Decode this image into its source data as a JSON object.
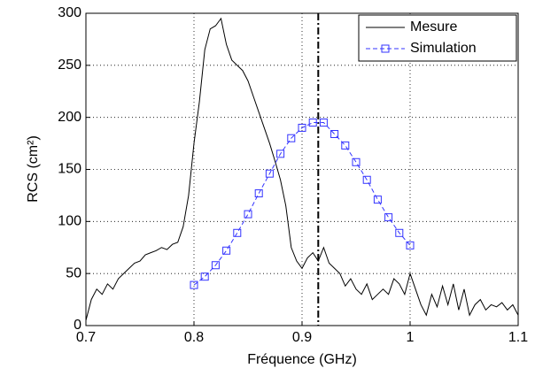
{
  "chart_data": {
    "type": "line",
    "xlabel": "Fréquence (GHz)",
    "ylabel": "RCS (cm²)",
    "xlim": [
      0.7,
      1.1
    ],
    "xticks": [
      0.7,
      0.8,
      0.9,
      1,
      1.1
    ],
    "ylim": [
      0,
      300
    ],
    "yticks": [
      0,
      50,
      100,
      150,
      200,
      250,
      300
    ],
    "grid": true,
    "legend": "upper right",
    "vline": 0.915,
    "series": [
      {
        "name": "Mesure",
        "color": "#000000",
        "marker": "none",
        "x": [
          0.7,
          0.705,
          0.71,
          0.715,
          0.72,
          0.725,
          0.73,
          0.735,
          0.74,
          0.745,
          0.75,
          0.755,
          0.76,
          0.765,
          0.77,
          0.775,
          0.78,
          0.785,
          0.79,
          0.795,
          0.8,
          0.805,
          0.81,
          0.815,
          0.82,
          0.825,
          0.83,
          0.835,
          0.84,
          0.845,
          0.85,
          0.855,
          0.86,
          0.865,
          0.87,
          0.875,
          0.88,
          0.885,
          0.89,
          0.895,
          0.9,
          0.905,
          0.91,
          0.915,
          0.92,
          0.925,
          0.93,
          0.935,
          0.94,
          0.945,
          0.95,
          0.955,
          0.96,
          0.965,
          0.97,
          0.975,
          0.98,
          0.985,
          0.99,
          0.995,
          1,
          1.005,
          1.01,
          1.015,
          1.02,
          1.025,
          1.03,
          1.035,
          1.04,
          1.045,
          1.05,
          1.055,
          1.06,
          1.065,
          1.07,
          1.075,
          1.08,
          1.085,
          1.09,
          1.095,
          1.1
        ],
        "values": [
          5,
          25,
          35,
          30,
          40,
          35,
          45,
          50,
          55,
          60,
          62,
          68,
          70,
          72,
          75,
          73,
          78,
          80,
          95,
          125,
          175,
          215,
          265,
          285,
          288,
          295,
          270,
          255,
          250,
          245,
          235,
          220,
          205,
          190,
          175,
          158,
          140,
          115,
          75,
          62,
          55,
          65,
          70,
          62,
          75,
          60,
          55,
          50,
          38,
          45,
          35,
          30,
          40,
          25,
          30,
          35,
          30,
          45,
          40,
          30,
          50,
          35,
          20,
          10,
          30,
          18,
          38,
          20,
          40,
          15,
          35,
          10,
          20,
          25,
          15,
          20,
          18,
          22,
          15,
          20,
          10
        ]
      },
      {
        "name": "Simulation",
        "color": "#3333ff",
        "marker": "square",
        "x": [
          0.8,
          0.81,
          0.82,
          0.83,
          0.84,
          0.85,
          0.86,
          0.87,
          0.88,
          0.89,
          0.9,
          0.91,
          0.92,
          0.93,
          0.94,
          0.95,
          0.96,
          0.97,
          0.98,
          0.99,
          1
        ],
        "values": [
          39,
          47,
          58,
          72,
          89,
          107,
          127,
          146,
          165,
          180,
          190,
          195,
          195,
          184,
          173,
          157,
          140,
          121,
          104,
          89,
          77
        ]
      }
    ]
  }
}
